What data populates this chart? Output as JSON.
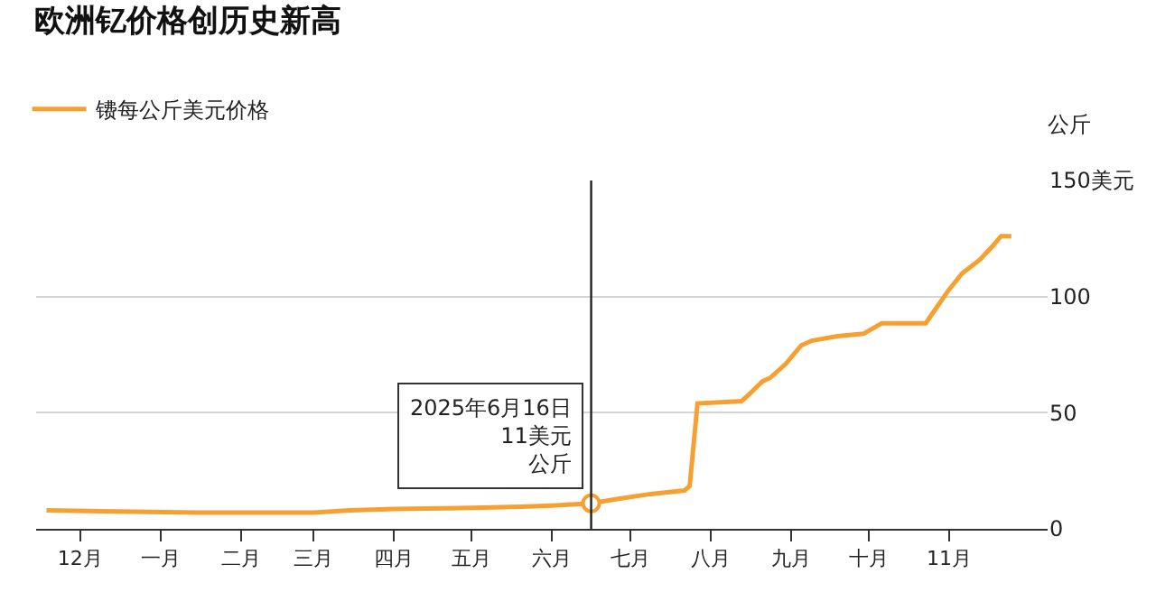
{
  "chart_data": {
    "type": "line",
    "title": "欧洲钇价格创历史新高",
    "x": [
      "2024-11-18",
      "2024-12-15",
      "2025-01-15",
      "2025-03-01",
      "2025-03-15",
      "2025-04-01",
      "2025-05-01",
      "2025-05-20",
      "2025-06-01",
      "2025-06-16",
      "2025-06-27",
      "2025-07-09",
      "2025-07-22",
      "2025-07-24",
      "2025-07-27",
      "2025-08-13",
      "2025-08-16",
      "2025-08-21",
      "2025-08-24",
      "2025-08-30",
      "2025-09-05",
      "2025-09-09",
      "2025-09-19",
      "2025-09-29",
      "2025-10-06",
      "2025-10-23",
      "2025-10-27",
      "2025-11-01",
      "2025-11-06",
      "2025-11-13",
      "2025-11-18",
      "2025-11-21",
      "2025-11-25"
    ],
    "series": [
      {
        "name": "镄每公斤美元价格",
        "color": "#f5a031",
        "values": [
          8,
          7.5,
          7,
          7,
          8,
          8.5,
          9,
          9.5,
          10,
          11,
          13,
          15,
          16.5,
          18.5,
          54,
          55,
          58,
          63.5,
          65,
          71,
          79,
          81,
          83,
          84,
          88.5,
          88.5,
          95,
          103,
          110,
          116,
          122,
          126,
          126
        ]
      }
    ],
    "xlim": [
      "2024-11-14",
      "2025-12-09"
    ],
    "xticks": [
      {
        "value": "2024-12-01",
        "label": "12月"
      },
      {
        "value": "2025-01-01",
        "label": "一月"
      },
      {
        "value": "2025-02-01",
        "label": "二月"
      },
      {
        "value": "2025-03-01",
        "label": "三月"
      },
      {
        "value": "2025-04-01",
        "label": "四月"
      },
      {
        "value": "2025-05-01",
        "label": "五月"
      },
      {
        "value": "2025-06-01",
        "label": "六月"
      },
      {
        "value": "2025-07-01",
        "label": "七月"
      },
      {
        "value": "2025-08-01",
        "label": "八月"
      },
      {
        "value": "2025-09-01",
        "label": "九月"
      },
      {
        "value": "2025-10-01",
        "label": "十月"
      },
      {
        "value": "2025-11-01",
        "label": "11月"
      }
    ],
    "ylim": [
      0,
      150
    ],
    "yticks": [
      0,
      50,
      100,
      {
        "value": 150,
        "label": "150美元"
      }
    ],
    "ylabel": "公斤",
    "grid": "y",
    "legend": "top left",
    "ref_lines": [
      {
        "axis": "x",
        "value": "2025-06-16",
        "color": "#222222"
      }
    ],
    "annotations": [
      {
        "text": "2025年6月16日\n11美元",
        "x": "2025-06-16",
        "y": 11
      },
      {
        "text": "公斤",
        "x": "2025-06-16",
        "y": 11
      }
    ]
  }
}
